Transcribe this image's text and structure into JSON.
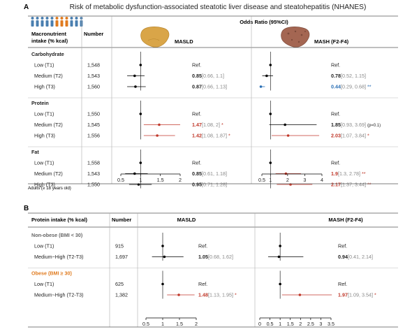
{
  "figure_title": "Risk of metabolic dysfunction-associated steatotic liver disease and steatohepatitis (NHANES)",
  "panel_a": {
    "letter": "A",
    "header": {
      "col1": [
        "Macronutrient",
        "intake (% kcal)"
      ],
      "col2": "Number",
      "span": "Odds Ratio (95%CI)",
      "left_plot": "MASLD",
      "right_plot": "MASH (F2-F4)"
    },
    "footnote": "Adults (≥ 18 years old)",
    "groups": [
      {
        "name": "Carbohydrate",
        "rows": [
          {
            "label": "Low (T1)",
            "number": "1,548",
            "left": {
              "or": null,
              "text": "Ref.",
              "ci": "",
              "star": ""
            },
            "right": {
              "or": null,
              "text": "Ref.",
              "ci": "",
              "star": ""
            }
          },
          {
            "label": "Medium (T2)",
            "number": "1,543",
            "left": {
              "or": 0.85,
              "lo": 0.66,
              "hi": 1.1,
              "text": "0.85",
              "ci": "[0.66, 1.1]",
              "star": ""
            },
            "right": {
              "or": 0.78,
              "lo": 0.52,
              "hi": 1.15,
              "text": "0.78",
              "ci": "[0.52, 1.15]",
              "star": ""
            }
          },
          {
            "label": "High (T3)",
            "number": "1,560",
            "left": {
              "or": 0.87,
              "lo": 0.66,
              "hi": 1.13,
              "text": "0.87",
              "ci": "[0.66, 1.13]",
              "star": ""
            },
            "right": {
              "or": 0.44,
              "lo": 0.29,
              "hi": 0.68,
              "text": "0.44",
              "ci": "[0.29, 0.68]",
              "star": "**",
              "color": "#2a6fb5"
            }
          }
        ]
      },
      {
        "name": "Protein",
        "rows": [
          {
            "label": "Low (T1)",
            "number": "1,550",
            "left": {
              "or": null,
              "text": "Ref.",
              "ci": "",
              "star": ""
            },
            "right": {
              "or": null,
              "text": "Ref.",
              "ci": "",
              "star": ""
            }
          },
          {
            "label": "Medium (T2)",
            "number": "1,545",
            "left": {
              "or": 1.47,
              "lo": 1.08,
              "hi": 2.0,
              "text": "1.47",
              "ci": "[1.08, 2]",
              "star": "*",
              "color": "#c0392b"
            },
            "right": {
              "or": 1.85,
              "lo": 0.93,
              "hi": 3.69,
              "text": "1.85",
              "ci": "[0.93, 3.69]",
              "star": "",
              "note": "(p=0.1)"
            }
          },
          {
            "label": "High (T3)",
            "number": "1,556",
            "left": {
              "or": 1.42,
              "lo": 1.08,
              "hi": 1.87,
              "text": "1.42",
              "ci": "[1.08, 1.87]",
              "star": "*",
              "color": "#c0392b"
            },
            "right": {
              "or": 2.03,
              "lo": 1.07,
              "hi": 3.84,
              "text": "2.03",
              "ci": "[1.07, 3.84]",
              "star": "*",
              "color": "#c0392b"
            }
          }
        ]
      },
      {
        "name": "Fat",
        "rows": [
          {
            "label": "Low (T1)",
            "number": "1,558",
            "left": {
              "or": null,
              "text": "Ref.",
              "ci": "",
              "star": ""
            },
            "right": {
              "or": null,
              "text": "Ref.",
              "ci": "",
              "star": ""
            }
          },
          {
            "label": "Medium (T2)",
            "number": "1,543",
            "left": {
              "or": 0.85,
              "lo": 0.61,
              "hi": 1.18,
              "text": "0.85",
              "ci": "[0.61, 1.18]",
              "star": ""
            },
            "right": {
              "or": 1.9,
              "lo": 1.3,
              "hi": 2.78,
              "text": "1.9",
              "ci": "[1.3, 2.78]",
              "star": "**",
              "color": "#c0392b"
            }
          },
          {
            "label": "High (T3)",
            "number": "1,550",
            "left": {
              "or": 0.95,
              "lo": 0.71,
              "hi": 1.28,
              "text": "0.95",
              "ci": "[0.71, 1.28]",
              "star": ""
            },
            "right": {
              "or": 2.17,
              "lo": 1.37,
              "hi": 3.44,
              "text": "2.17",
              "ci": "[1.37, 3.44]",
              "star": "**",
              "color": "#c0392b"
            }
          }
        ]
      }
    ],
    "left_axis": {
      "min": 0.5,
      "max": 2,
      "ticks": [
        "0.5",
        "1",
        "1.5",
        "2"
      ],
      "tick_values": [
        0.5,
        1,
        1.5,
        2
      ]
    },
    "right_axis": {
      "min": 0.5,
      "max": 4,
      "ticks": [
        "0.5",
        "1",
        "2",
        "3",
        "4"
      ],
      "tick_values": [
        0.5,
        1,
        2,
        3,
        4
      ]
    }
  },
  "panel_b": {
    "letter": "B",
    "header": {
      "col1": "Protein intake (% kcal)",
      "col2": "Number",
      "left_plot": "MASLD",
      "right_plot": "MASH (F2-F4)"
    },
    "groups": [
      {
        "name": "Non-obese (BMI < 30)",
        "color": "#666666",
        "rows": [
          {
            "label": "Low (T1)",
            "number": "915",
            "left": {
              "or": null,
              "text": "Ref.",
              "ci": "",
              "star": ""
            },
            "right": {
              "or": null,
              "text": "Ref.",
              "ci": "",
              "star": ""
            }
          },
          {
            "label": "Medium~High (T2-T3)",
            "number": "1,697",
            "left": {
              "or": 1.05,
              "lo": 0.68,
              "hi": 1.62,
              "text": "1.05",
              "ci": "[0.68, 1.62]",
              "star": ""
            },
            "right": {
              "or": 0.94,
              "lo": 0.41,
              "hi": 2.14,
              "text": "0.94",
              "ci": "[0.41, 2.14]",
              "star": ""
            }
          }
        ]
      },
      {
        "name": "Obese (BMI ≥ 30)",
        "color": "#e07b1f",
        "rows": [
          {
            "label": "Low (T1)",
            "number": "625",
            "left": {
              "or": null,
              "text": "Ref.",
              "ci": "",
              "star": ""
            },
            "right": {
              "or": null,
              "text": "Ref.",
              "ci": "",
              "star": ""
            }
          },
          {
            "label": "Medium~High (T2-T3)",
            "number": "1,382",
            "left": {
              "or": 1.48,
              "lo": 1.13,
              "hi": 1.95,
              "text": "1.48",
              "ci": "[1.13, 1.95]",
              "star": "*",
              "color": "#c0392b"
            },
            "right": {
              "or": 1.97,
              "lo": 1.09,
              "hi": 3.54,
              "text": "1.97",
              "ci": "[1.09, 3.54]",
              "star": "*",
              "color": "#c0392b"
            }
          }
        ]
      }
    ],
    "left_axis": {
      "min": 0.5,
      "max": 2,
      "ticks": [
        "0.5",
        "1",
        "1.5",
        "2"
      ],
      "tick_values": [
        0.5,
        1,
        1.5,
        2
      ]
    },
    "right_axis": {
      "min": 0,
      "max": 3.5,
      "ticks": [
        "0",
        "0.5",
        "1",
        "1.5",
        "2",
        "2.5",
        "3",
        "3.5"
      ],
      "tick_values": [
        0,
        0.5,
        1,
        1.5,
        2,
        2.5,
        3,
        3.5
      ]
    }
  },
  "colors": {
    "significant": "#c0392b",
    "protective": "#2a6fb5",
    "ci_gray": "#888888",
    "group_shade": "#f2f2f2",
    "rule": "#999999"
  },
  "icons": [
    "people-icon",
    "liver-healthy-icon",
    "liver-fibrotic-icon"
  ],
  "chart_data": [
    {
      "type": "table",
      "title": "Risk of metabolic dysfunction-associated steatotic liver disease and steatohepatitis (NHANES)",
      "subtitle": "A — MASLD",
      "xlabel": "Odds Ratio (95%CI)",
      "xlim": [
        0.5,
        2
      ],
      "series": [
        {
          "name": "Carbohydrate",
          "values": [
            [
              1,
              1,
              1
            ],
            [
              0.85,
              0.66,
              1.1
            ],
            [
              0.87,
              0.66,
              1.13
            ]
          ]
        },
        {
          "name": "Protein",
          "values": [
            [
              1,
              1,
              1
            ],
            [
              1.47,
              1.08,
              2.0
            ],
            [
              1.42,
              1.08,
              1.87
            ]
          ]
        },
        {
          "name": "Fat",
          "values": [
            [
              1,
              1,
              1
            ],
            [
              0.85,
              0.61,
              1.18
            ],
            [
              0.95,
              0.71,
              1.28
            ]
          ]
        }
      ],
      "categories": [
        "Low (T1)",
        "Medium (T2)",
        "High (T3)"
      ]
    },
    {
      "type": "table",
      "subtitle": "A — MASH (F2-F4)",
      "xlabel": "Odds Ratio (95%CI)",
      "xlim": [
        0.5,
        4
      ],
      "series": [
        {
          "name": "Carbohydrate",
          "values": [
            [
              1,
              1,
              1
            ],
            [
              0.78,
              0.52,
              1.15
            ],
            [
              0.44,
              0.29,
              0.68
            ]
          ]
        },
        {
          "name": "Protein",
          "values": [
            [
              1,
              1,
              1
            ],
            [
              1.85,
              0.93,
              3.69
            ],
            [
              2.03,
              1.07,
              3.84
            ]
          ]
        },
        {
          "name": "Fat",
          "values": [
            [
              1,
              1,
              1
            ],
            [
              1.9,
              1.3,
              2.78
            ],
            [
              2.17,
              1.37,
              3.44
            ]
          ]
        }
      ],
      "categories": [
        "Low (T1)",
        "Medium (T2)",
        "High (T3)"
      ]
    },
    {
      "type": "table",
      "subtitle": "B — MASLD",
      "xlim": [
        0.5,
        2
      ],
      "series": [
        {
          "name": "Non-obese (BMI < 30)",
          "values": [
            [
              1,
              1,
              1
            ],
            [
              1.05,
              0.68,
              1.62
            ]
          ]
        },
        {
          "name": "Obese (BMI ≥ 30)",
          "values": [
            [
              1,
              1,
              1
            ],
            [
              1.48,
              1.13,
              1.95
            ]
          ]
        }
      ],
      "categories": [
        "Low (T1)",
        "Medium~High (T2-T3)"
      ]
    },
    {
      "type": "table",
      "subtitle": "B — MASH (F2-F4)",
      "xlim": [
        0,
        3.5
      ],
      "series": [
        {
          "name": "Non-obese (BMI < 30)",
          "values": [
            [
              1,
              1,
              1
            ],
            [
              0.94,
              0.41,
              2.14
            ]
          ]
        },
        {
          "name": "Obese (BMI ≥ 30)",
          "values": [
            [
              1,
              1,
              1
            ],
            [
              1.97,
              1.09,
              3.54
            ]
          ]
        }
      ],
      "categories": [
        "Low (T1)",
        "Medium~High (T2-T3)"
      ]
    }
  ]
}
